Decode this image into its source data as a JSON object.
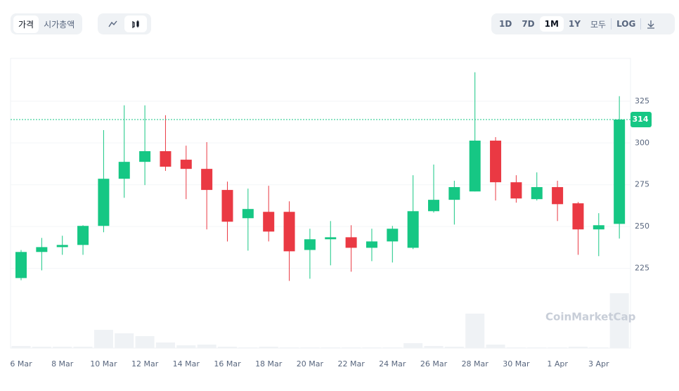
{
  "controls": {
    "view_tabs": [
      "가격",
      "시가총액"
    ],
    "ranges": [
      "1D",
      "7D",
      "1M",
      "1Y",
      "모두"
    ],
    "log": "LOG"
  },
  "chart_data": {
    "type": "candlestick",
    "categories": [
      "6 Mar",
      null,
      "8 Mar",
      null,
      "10 Mar",
      null,
      "12 Mar",
      null,
      "14 Mar",
      null,
      "16 Mar",
      null,
      "18 Mar",
      null,
      "20 Mar",
      null,
      "22 Mar",
      null,
      "24 Mar",
      null,
      "26 Mar",
      null,
      "28 Mar",
      null,
      "30 Mar",
      null,
      "1 Apr",
      null,
      "3 Apr",
      null
    ],
    "open": [
      219.2,
      234.8,
      237.7,
      239,
      250.4,
      278.6,
      288.7,
      295.1,
      290,
      284.5,
      271.9,
      255,
      258.8,
      258.8,
      236,
      242.4,
      243.6,
      237.3,
      241.1,
      237.3,
      259.2,
      266,
      271,
      301.4,
      276.5,
      266.4,
      273.6,
      263.9,
      248.3,
      251.6
    ],
    "high": [
      236,
      243.2,
      244.5,
      250.8,
      307.7,
      322.5,
      322.5,
      316.6,
      298.4,
      300.5,
      276.9,
      272.7,
      274.4,
      265.1,
      248.7,
      253.3,
      250.8,
      248.7,
      250.4,
      280.7,
      287.1,
      277.4,
      342.3,
      303.5,
      280.7,
      282.4,
      277.4,
      264.7,
      258,
      328
    ],
    "low": [
      217.9,
      223.8,
      233.1,
      233.1,
      246.6,
      267.2,
      274.8,
      283.3,
      266.4,
      248.3,
      241.1,
      235.6,
      241.1,
      217.5,
      218.8,
      226.8,
      223,
      229.3,
      228.5,
      236.5,
      258.4,
      251.2,
      271,
      265.6,
      264.3,
      265.6,
      253.3,
      233.1,
      232.3,
      242.8
    ],
    "close": [
      234.8,
      237.7,
      239,
      250.4,
      278.6,
      288.7,
      295.1,
      285.8,
      284.5,
      271.9,
      252.9,
      260.5,
      247,
      235.2,
      242.4,
      243.6,
      237.3,
      241.1,
      248.7,
      259.2,
      266,
      273.6,
      301.4,
      276.5,
      266.8,
      273.6,
      263.4,
      248.3,
      250.8,
      314
    ],
    "volume": [
      3,
      2,
      2,
      2,
      26,
      21,
      17,
      8,
      4,
      5,
      2,
      1,
      2,
      1,
      1,
      1,
      1,
      1,
      1,
      7,
      3,
      2,
      49,
      5,
      1,
      1,
      1,
      2,
      1,
      78
    ],
    "volume_lim": [
      0,
      100
    ],
    "up_color": "#16c784",
    "down_color": "#ea3943",
    "volume_color": "#eff2f5",
    "ylim": [
      177.3,
      350.6
    ],
    "yticks": [
      225,
      250,
      275,
      300,
      325
    ],
    "grid": true,
    "last_price": 314,
    "watermark": "CoinMarketCap"
  }
}
